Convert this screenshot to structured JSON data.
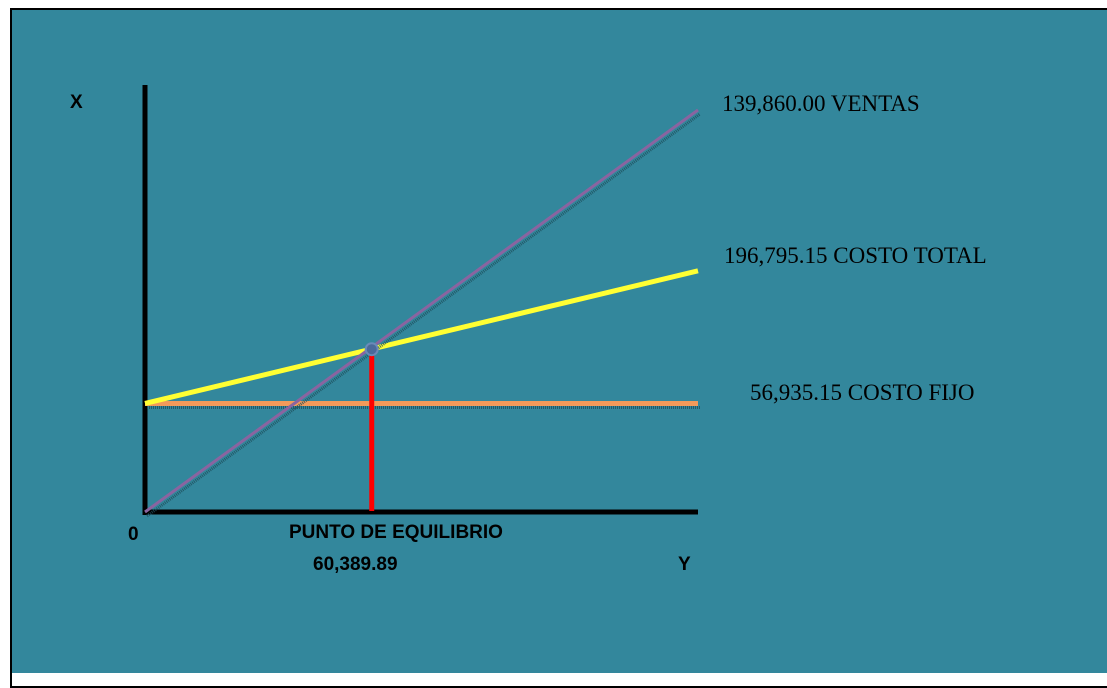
{
  "colors": {
    "background": "#33879c",
    "ventas": "#8a64a0",
    "costo_total": "#ffff33",
    "costo_fijo": "#f29a5a",
    "equilibrio": "#ff0000",
    "equilibrio_point": "#4a6a9a",
    "axis": "#000000"
  },
  "chart_data": {
    "type": "line",
    "title": "",
    "xlabel": "Y",
    "ylabel": "X",
    "origin_label": "0",
    "grid": false,
    "legend": "none",
    "xlim": [
      0,
      100
    ],
    "ylim": [
      0,
      100
    ],
    "series": [
      {
        "key": "ventas",
        "label": "139,860.00 VENTAS",
        "x": [
          0,
          100
        ],
        "y": [
          0,
          100
        ]
      },
      {
        "key": "costo_total",
        "label": "196,795.15 COSTO TOTAL",
        "x": [
          0,
          100
        ],
        "y": [
          27,
          60
        ]
      },
      {
        "key": "costo_fijo",
        "label": "56,935.15 COSTO FIJO",
        "x": [
          0,
          100
        ],
        "y": [
          27,
          27
        ]
      }
    ],
    "break_even": {
      "label": "PUNTO DE EQUILIBRIO",
      "value_label": "60,389.89",
      "x": 41,
      "y": 40.5
    }
  }
}
